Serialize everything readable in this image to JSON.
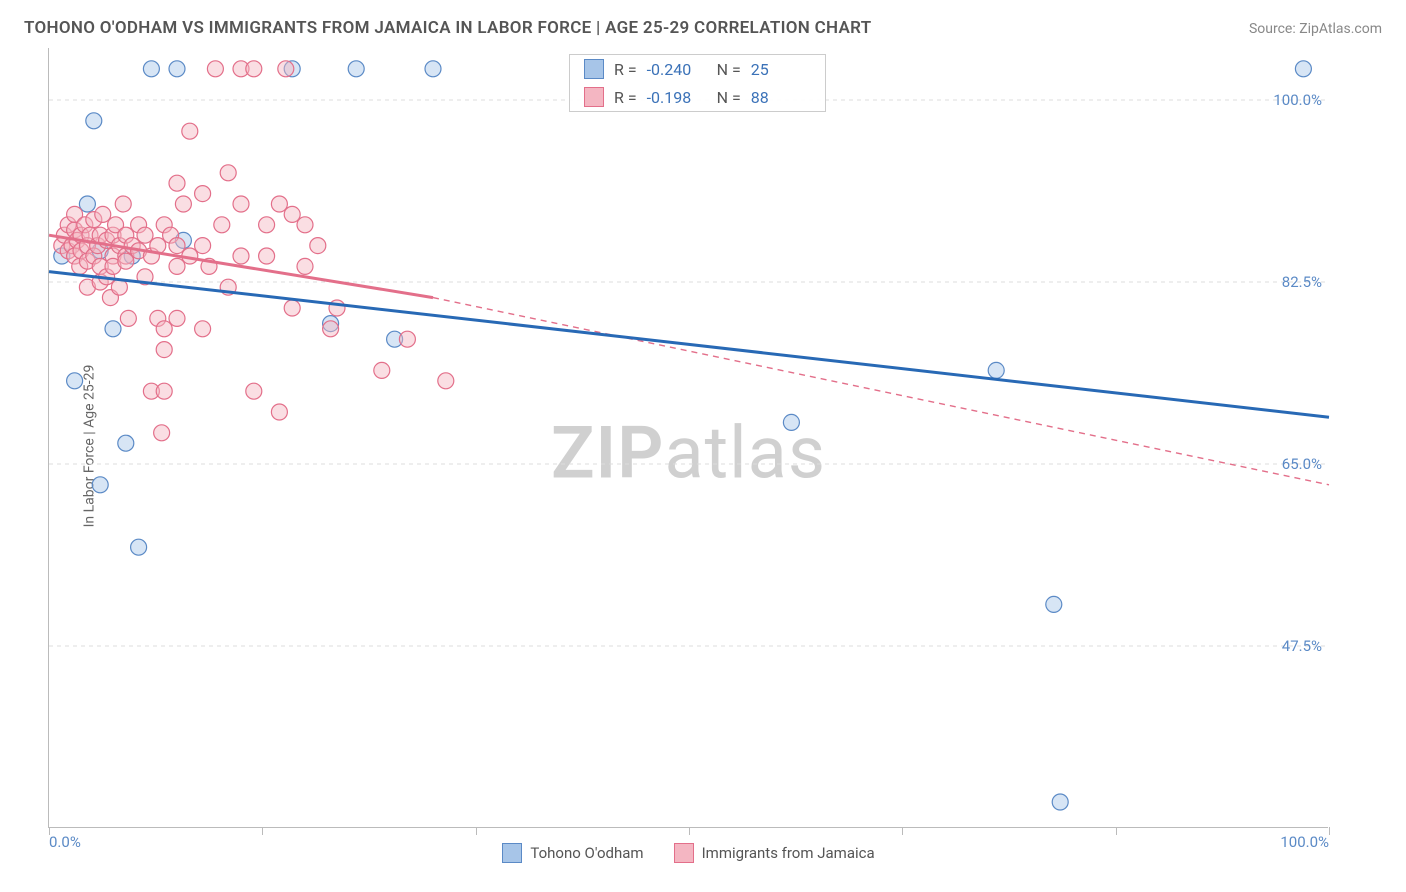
{
  "header": {
    "title": "TOHONO O'ODHAM VS IMMIGRANTS FROM JAMAICA IN LABOR FORCE | AGE 25-29 CORRELATION CHART",
    "source": "Source: ZipAtlas.com"
  },
  "chart": {
    "type": "scatter",
    "ylabel": "In Labor Force | Age 25-29",
    "watermark_zip": "ZIP",
    "watermark_atlas": "atlas",
    "background_color": "#ffffff",
    "grid_color": "#dddddd",
    "axis_color": "#bbbbbb",
    "tick_label_color": "#5b8ac6",
    "xlim": [
      0,
      100
    ],
    "ylim": [
      30,
      105
    ],
    "xticks": [
      0,
      16.67,
      33.33,
      50,
      66.67,
      83.33,
      100
    ],
    "xtick_labels_shown": {
      "0": "0.0%",
      "100": "100.0%"
    },
    "yticks": [
      47.5,
      65.0,
      82.5,
      100.0
    ],
    "ytick_labels": [
      "47.5%",
      "65.0%",
      "82.5%",
      "100.0%"
    ],
    "marker_radius": 8,
    "marker_opacity": 0.45,
    "series": [
      {
        "name": "Tohono O'odham",
        "color_fill": "#a7c5e8",
        "color_stroke": "#5b8ac6",
        "line_color": "#2869b5",
        "line_width": 3,
        "r_value": "-0.240",
        "n_value": "25",
        "trend": {
          "x1": 0,
          "y1": 83.5,
          "x2": 100,
          "y2": 69.5
        },
        "points": [
          [
            1,
            85
          ],
          [
            2,
            73
          ],
          [
            3,
            90
          ],
          [
            3.5,
            98
          ],
          [
            4,
            85.5
          ],
          [
            4,
            63
          ],
          [
            5,
            78
          ],
          [
            6,
            67
          ],
          [
            6.5,
            85
          ],
          [
            7,
            57
          ],
          [
            8,
            103
          ],
          [
            10,
            103
          ],
          [
            10.5,
            86.5
          ],
          [
            19,
            103
          ],
          [
            22,
            78.5
          ],
          [
            24,
            103
          ],
          [
            27,
            77
          ],
          [
            30,
            103
          ],
          [
            58,
            69
          ],
          [
            74,
            74
          ],
          [
            78.5,
            51.5
          ],
          [
            79,
            32.5
          ],
          [
            98,
            103
          ]
        ]
      },
      {
        "name": "Immigrants from Jamaica",
        "color_fill": "#f4b6c2",
        "color_stroke": "#e36f8a",
        "line_color": "#e36f8a",
        "line_width": 3,
        "r_value": "-0.198",
        "n_value": "88",
        "trend_solid": {
          "x1": 0,
          "y1": 87,
          "x2": 30,
          "y2": 81
        },
        "trend_dash": {
          "x1": 30,
          "y1": 81,
          "x2": 100,
          "y2": 63
        },
        "points": [
          [
            1,
            86
          ],
          [
            1.2,
            87
          ],
          [
            1.5,
            85.5
          ],
          [
            1.5,
            88
          ],
          [
            1.8,
            86
          ],
          [
            2,
            87.5
          ],
          [
            2,
            85
          ],
          [
            2,
            89
          ],
          [
            2.2,
            86.5
          ],
          [
            2.4,
            84
          ],
          [
            2.5,
            87
          ],
          [
            2.5,
            85.5
          ],
          [
            2.8,
            88
          ],
          [
            3,
            86
          ],
          [
            3,
            84.5
          ],
          [
            3,
            82
          ],
          [
            3.2,
            87
          ],
          [
            3.5,
            85
          ],
          [
            3.5,
            88.5
          ],
          [
            3.8,
            86
          ],
          [
            4,
            82.5
          ],
          [
            4,
            87
          ],
          [
            4,
            84
          ],
          [
            4.2,
            89
          ],
          [
            4.5,
            86.5
          ],
          [
            4.5,
            83
          ],
          [
            4.8,
            81
          ],
          [
            5,
            87
          ],
          [
            5,
            85
          ],
          [
            5,
            84
          ],
          [
            5.2,
            88
          ],
          [
            5.5,
            86
          ],
          [
            5.5,
            82
          ],
          [
            5.8,
            90
          ],
          [
            6,
            85
          ],
          [
            6,
            87
          ],
          [
            6,
            84.5
          ],
          [
            6.2,
            79
          ],
          [
            6.5,
            86
          ],
          [
            7,
            85.5
          ],
          [
            7,
            88
          ],
          [
            7.5,
            83
          ],
          [
            7.5,
            87
          ],
          [
            8,
            85
          ],
          [
            8,
            72
          ],
          [
            8.5,
            86
          ],
          [
            8.5,
            79
          ],
          [
            8.8,
            68
          ],
          [
            9,
            88
          ],
          [
            9,
            78
          ],
          [
            9,
            76
          ],
          [
            9,
            72
          ],
          [
            9.5,
            87
          ],
          [
            10,
            84
          ],
          [
            10,
            86
          ],
          [
            10,
            92
          ],
          [
            10,
            79
          ],
          [
            10.5,
            90
          ],
          [
            11,
            85
          ],
          [
            11,
            97
          ],
          [
            12,
            78
          ],
          [
            12,
            86
          ],
          [
            12,
            91
          ],
          [
            12.5,
            84
          ],
          [
            13,
            103
          ],
          [
            13.5,
            88
          ],
          [
            14,
            82
          ],
          [
            14,
            93
          ],
          [
            15,
            85
          ],
          [
            15,
            103
          ],
          [
            15,
            90
          ],
          [
            16,
            103
          ],
          [
            16,
            72
          ],
          [
            17,
            88
          ],
          [
            17,
            85
          ],
          [
            18,
            90
          ],
          [
            18,
            70
          ],
          [
            18.5,
            103
          ],
          [
            19,
            80
          ],
          [
            19,
            89
          ],
          [
            20,
            84
          ],
          [
            20,
            88
          ],
          [
            21,
            86
          ],
          [
            22,
            78
          ],
          [
            22.5,
            80
          ],
          [
            26,
            74
          ],
          [
            28,
            77
          ],
          [
            31,
            73
          ]
        ]
      }
    ],
    "stat_labels": {
      "r": "R =",
      "n": "N ="
    }
  }
}
